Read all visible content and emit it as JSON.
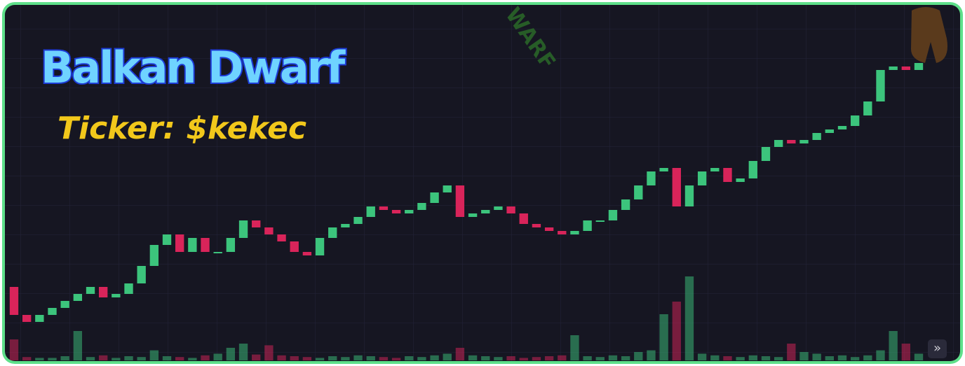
{
  "header": {
    "title": "Balkan Dwarf",
    "ticker": "Ticker: $kekec",
    "watermark": "WARF"
  },
  "controls": {
    "scroll": "»"
  },
  "chart_data": {
    "type": "candlestick",
    "open": [
      22,
      14,
      12,
      14,
      16,
      18,
      20,
      22,
      19,
      20,
      23,
      28,
      34,
      37,
      32,
      36,
      32,
      32,
      36,
      41,
      39,
      37,
      35,
      32,
      31,
      36,
      39,
      40,
      42,
      45,
      44,
      43,
      44,
      46,
      49,
      51,
      42,
      43,
      44,
      45,
      43,
      40,
      39,
      38,
      37,
      38,
      41,
      41,
      44,
      47,
      51,
      55,
      56,
      45,
      51,
      55,
      56,
      52,
      53,
      58,
      62,
      64,
      63,
      64,
      66,
      67,
      68,
      71,
      75,
      84,
      85,
      84
    ],
    "close": [
      14,
      12,
      14,
      16,
      18,
      20,
      22,
      19,
      20,
      23,
      28,
      34,
      37,
      32,
      36,
      32,
      32,
      36,
      41,
      39,
      37,
      35,
      32,
      31,
      36,
      39,
      40,
      42,
      45,
      44,
      43,
      44,
      46,
      49,
      51,
      42,
      43,
      44,
      45,
      43,
      40,
      39,
      38,
      37,
      38,
      41,
      41,
      44,
      47,
      51,
      55,
      56,
      45,
      51,
      55,
      56,
      52,
      53,
      58,
      62,
      64,
      63,
      64,
      66,
      67,
      68,
      71,
      75,
      84,
      85,
      84,
      86
    ],
    "volume": [
      25,
      4,
      3,
      3,
      5,
      35,
      4,
      6,
      3,
      5,
      4,
      12,
      5,
      4,
      3,
      6,
      8,
      15,
      20,
      7,
      18,
      6,
      5,
      4,
      3,
      5,
      4,
      6,
      5,
      4,
      3,
      5,
      4,
      6,
      8,
      15,
      6,
      5,
      4,
      5,
      3,
      4,
      5,
      6,
      30,
      5,
      4,
      6,
      5,
      10,
      12,
      55,
      70,
      100,
      8,
      6,
      5,
      4,
      6,
      5,
      4,
      20,
      10,
      8,
      5,
      6,
      4,
      6,
      12,
      35,
      20,
      8
    ],
    "ylim": [
      0,
      104
    ],
    "y2lim": [
      0,
      100
    ],
    "up_color": "#3cc47c",
    "down_color": "#d9245a"
  }
}
